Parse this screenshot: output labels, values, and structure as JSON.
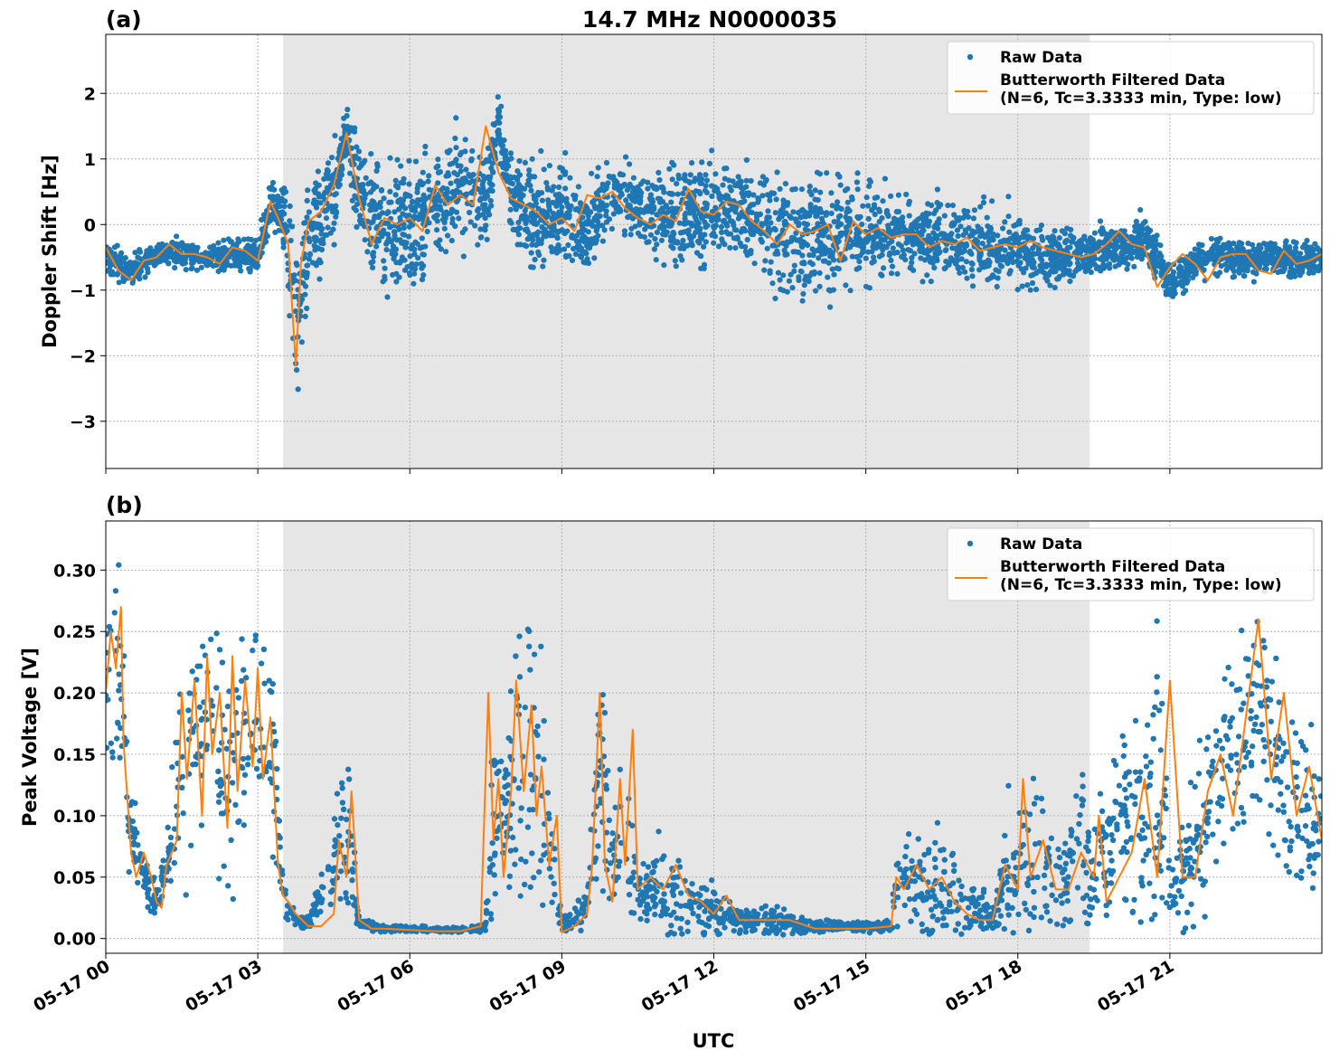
{
  "chart_data": [
    {
      "type": "scatter",
      "panel_label": "(a)",
      "title": "14.7 MHz N0000035",
      "xlabel": "",
      "ylabel": "Doppler Shift [Hz]",
      "x_range_hours_utc": [
        0,
        24
      ],
      "ylim": [
        -3.72,
        2.9
      ],
      "yticks": [
        -3,
        -2,
        -1,
        0,
        1,
        2
      ],
      "ytick_labels": [
        "−3",
        "−2",
        "−1",
        "0",
        "1",
        "2"
      ],
      "grid": true,
      "legend_position": "top-right",
      "shaded_interval_utc": [
        "05-17 03:30",
        "05-17 19:25"
      ],
      "series": [
        {
          "name": "Raw Data",
          "style": "points",
          "color": "#1f77b4",
          "x_hours": [
            0,
            0.5,
            1,
            1.5,
            2,
            2.5,
            3,
            3.25,
            3.5,
            3.75,
            4,
            4.25,
            4.5,
            4.75,
            5,
            5.5,
            6,
            6.5,
            7,
            7.5,
            7.75,
            8,
            8.5,
            9,
            9.5,
            10,
            10.5,
            11,
            11.5,
            12,
            12.5,
            13,
            13.5,
            14,
            14.5,
            15,
            15.5,
            16,
            16.5,
            17,
            17.5,
            18,
            18.5,
            19,
            19.5,
            20,
            20.5,
            21,
            21.5,
            22,
            22.5,
            23,
            23.5,
            24
          ],
          "center": [
            -0.45,
            -0.75,
            -0.45,
            -0.45,
            -0.5,
            -0.45,
            -0.5,
            0.3,
            0.1,
            -1.3,
            -0.5,
            0.1,
            0.5,
            1.35,
            0.4,
            0.0,
            -0.05,
            0.35,
            0.5,
            0.4,
            1.5,
            0.45,
            0.1,
            0.2,
            -0.05,
            0.5,
            0.3,
            0.1,
            0.15,
            0.15,
            0.25,
            0.0,
            -0.2,
            -0.15,
            -0.1,
            -0.1,
            -0.15,
            -0.2,
            -0.25,
            -0.3,
            -0.35,
            -0.35,
            -0.5,
            -0.5,
            -0.4,
            -0.35,
            -0.2,
            -0.9,
            -0.55,
            -0.45,
            -0.55,
            -0.45,
            -0.6,
            -0.5
          ],
          "spread": [
            0.25,
            0.25,
            0.2,
            0.2,
            0.2,
            0.25,
            0.3,
            0.45,
            0.6,
            1.1,
            0.9,
            0.8,
            0.7,
            0.45,
            0.9,
            0.9,
            0.9,
            0.85,
            0.85,
            0.75,
            0.45,
            0.6,
            0.7,
            0.85,
            0.65,
            0.55,
            0.55,
            0.7,
            0.75,
            0.75,
            0.65,
            0.85,
            0.95,
            0.95,
            0.9,
            0.85,
            0.6,
            0.55,
            0.6,
            0.6,
            0.55,
            0.55,
            0.5,
            0.4,
            0.35,
            0.35,
            0.4,
            0.3,
            0.3,
            0.3,
            0.3,
            0.3,
            0.3,
            0.3
          ]
        },
        {
          "name": "Butterworth Filtered Data\n(N=6, Tc=3.3333 min, Type: low)",
          "style": "line",
          "color": "#ff7f0e",
          "x_hours": [
            0,
            0.25,
            0.5,
            0.75,
            1,
            1.25,
            1.5,
            1.75,
            2,
            2.25,
            2.5,
            2.75,
            3,
            3.25,
            3.4,
            3.6,
            3.75,
            3.85,
            4,
            4.25,
            4.5,
            4.75,
            5,
            5.25,
            5.5,
            5.75,
            6,
            6.25,
            6.5,
            6.75,
            7,
            7.25,
            7.5,
            7.75,
            8,
            8.25,
            8.5,
            8.75,
            9,
            9.25,
            9.5,
            9.75,
            10,
            10.25,
            10.5,
            10.75,
            11,
            11.25,
            11.5,
            11.75,
            12,
            12.25,
            12.5,
            12.75,
            13,
            13.25,
            13.5,
            13.75,
            14,
            14.25,
            14.5,
            14.75,
            15,
            15.25,
            15.5,
            15.75,
            16,
            16.25,
            16.5,
            16.75,
            17,
            17.25,
            17.5,
            17.75,
            18,
            18.25,
            18.5,
            18.75,
            19,
            19.25,
            19.5,
            19.75,
            20,
            20.25,
            20.5,
            20.75,
            21,
            21.25,
            21.5,
            21.75,
            22,
            22.25,
            22.5,
            22.75,
            23,
            23.25,
            23.5,
            23.75,
            24
          ],
          "y": [
            -0.35,
            -0.7,
            -0.85,
            -0.55,
            -0.5,
            -0.3,
            -0.45,
            -0.45,
            -0.5,
            -0.6,
            -0.35,
            -0.4,
            -0.55,
            0.35,
            0.1,
            -0.3,
            -2.15,
            -0.6,
            0.05,
            0.2,
            0.6,
            1.4,
            0.4,
            -0.3,
            0.1,
            0.0,
            0.1,
            -0.1,
            0.6,
            0.3,
            0.45,
            0.3,
            1.5,
            0.8,
            0.4,
            0.3,
            0.2,
            0.0,
            0.1,
            -0.1,
            0.45,
            0.4,
            0.5,
            0.25,
            0.1,
            0.0,
            0.15,
            0.05,
            0.55,
            0.2,
            0.15,
            0.35,
            0.3,
            0.05,
            -0.1,
            -0.3,
            0.0,
            -0.15,
            -0.1,
            0.0,
            -0.55,
            0.05,
            -0.15,
            -0.05,
            -0.2,
            -0.15,
            -0.15,
            -0.35,
            -0.25,
            -0.3,
            -0.2,
            -0.4,
            -0.35,
            -0.3,
            -0.35,
            -0.25,
            -0.35,
            -0.4,
            -0.45,
            -0.5,
            -0.45,
            -0.3,
            -0.1,
            -0.3,
            -0.35,
            -0.95,
            -0.65,
            -0.45,
            -0.6,
            -0.85,
            -0.5,
            -0.45,
            -0.45,
            -0.7,
            -0.75,
            -0.4,
            -0.6,
            -0.55,
            -0.45
          ]
        }
      ]
    },
    {
      "type": "scatter",
      "panel_label": "(b)",
      "title": "",
      "xlabel": "UTC",
      "ylabel": "Peak Voltage [V]",
      "x_range_hours_utc": [
        0,
        24
      ],
      "ylim": [
        -0.012,
        0.34
      ],
      "yticks": [
        0.0,
        0.05,
        0.1,
        0.15,
        0.2,
        0.25,
        0.3
      ],
      "ytick_labels": [
        "0.00",
        "0.05",
        "0.10",
        "0.15",
        "0.20",
        "0.25",
        "0.30"
      ],
      "xticks_hours": [
        0,
        3,
        6,
        9,
        12,
        15,
        18,
        21
      ],
      "xtick_labels": [
        "05-17 00",
        "05-17 03",
        "05-17 06",
        "05-17 09",
        "05-17 12",
        "05-17 15",
        "05-17 18",
        "05-17 21"
      ],
      "grid": true,
      "legend_position": "top-right",
      "shaded_interval_utc": [
        "05-17 03:30",
        "05-17 19:25"
      ],
      "series": [
        {
          "name": "Raw Data",
          "style": "points",
          "color": "#1f77b4",
          "x_hours": [
            0,
            0.25,
            0.5,
            0.75,
            1,
            1.25,
            1.5,
            1.75,
            2,
            2.25,
            2.5,
            2.75,
            3,
            3.25,
            3.5,
            3.75,
            4,
            4.5,
            4.75,
            5,
            5.25,
            5.5,
            6,
            6.5,
            7,
            7.5,
            7.6,
            7.75,
            8,
            8.25,
            8.5,
            8.75,
            9,
            9.25,
            9.5,
            9.75,
            10,
            10.25,
            10.5,
            10.75,
            11,
            11.5,
            12,
            12.5,
            13,
            13.5,
            14,
            14.5,
            15,
            15.5,
            15.6,
            16,
            16.5,
            17,
            17.25,
            17.5,
            17.75,
            18,
            18.25,
            18.5,
            18.75,
            19,
            19.25,
            19.5,
            19.75,
            20,
            20.25,
            20.5,
            20.75,
            21,
            21.25,
            21.5,
            21.75,
            22,
            22.25,
            22.5,
            22.75,
            23,
            23.25,
            23.5,
            23.75,
            24
          ],
          "center": [
            0.2,
            0.24,
            0.08,
            0.05,
            0.03,
            0.07,
            0.14,
            0.17,
            0.18,
            0.16,
            0.15,
            0.17,
            0.16,
            0.17,
            0.04,
            0.015,
            0.012,
            0.06,
            0.09,
            0.012,
            0.01,
            0.008,
            0.008,
            0.007,
            0.007,
            0.01,
            0.08,
            0.1,
            0.12,
            0.15,
            0.14,
            0.08,
            0.01,
            0.015,
            0.03,
            0.15,
            0.05,
            0.1,
            0.04,
            0.04,
            0.04,
            0.03,
            0.02,
            0.015,
            0.015,
            0.012,
            0.01,
            0.01,
            0.01,
            0.01,
            0.05,
            0.05,
            0.04,
            0.03,
            0.02,
            0.02,
            0.05,
            0.05,
            0.06,
            0.06,
            0.05,
            0.05,
            0.07,
            0.05,
            0.06,
            0.1,
            0.1,
            0.11,
            0.13,
            0.06,
            0.06,
            0.08,
            0.1,
            0.13,
            0.15,
            0.18,
            0.2,
            0.16,
            0.12,
            0.11,
            0.1,
            0.1
          ],
          "spread": [
            0.1,
            0.08,
            0.04,
            0.025,
            0.015,
            0.05,
            0.1,
            0.1,
            0.1,
            0.1,
            0.1,
            0.1,
            0.1,
            0.1,
            0.025,
            0.006,
            0.005,
            0.04,
            0.08,
            0.005,
            0.004,
            0.003,
            0.003,
            0.002,
            0.002,
            0.004,
            0.08,
            0.07,
            0.08,
            0.12,
            0.1,
            0.06,
            0.005,
            0.01,
            0.025,
            0.11,
            0.04,
            0.1,
            0.03,
            0.03,
            0.05,
            0.025,
            0.02,
            0.01,
            0.015,
            0.01,
            0.006,
            0.004,
            0.005,
            0.005,
            0.04,
            0.04,
            0.04,
            0.03,
            0.015,
            0.015,
            0.05,
            0.06,
            0.1,
            0.05,
            0.05,
            0.05,
            0.08,
            0.05,
            0.05,
            0.09,
            0.1,
            0.1,
            0.12,
            0.04,
            0.05,
            0.06,
            0.07,
            0.1,
            0.1,
            0.1,
            0.1,
            0.1,
            0.08,
            0.07,
            0.07,
            0.07
          ]
        },
        {
          "name": "Butterworth Filtered Data\n(N=6, Tc=3.3333 min, Type: low)",
          "style": "line",
          "color": "#ff7f0e",
          "x_hours": [
            0,
            0.1,
            0.2,
            0.3,
            0.35,
            0.5,
            0.6,
            0.75,
            0.9,
            1.0,
            1.1,
            1.2,
            1.3,
            1.4,
            1.5,
            1.6,
            1.75,
            1.9,
            2.0,
            2.1,
            2.25,
            2.4,
            2.5,
            2.6,
            2.75,
            2.9,
            3.0,
            3.1,
            3.25,
            3.4,
            3.5,
            3.6,
            3.75,
            4.0,
            4.25,
            4.5,
            4.6,
            4.75,
            4.85,
            5.0,
            5.25,
            5.5,
            6.0,
            6.5,
            7.0,
            7.4,
            7.55,
            7.65,
            7.75,
            7.85,
            8.0,
            8.1,
            8.25,
            8.4,
            8.5,
            8.6,
            8.75,
            8.9,
            9.0,
            9.25,
            9.5,
            9.6,
            9.75,
            9.85,
            10.0,
            10.15,
            10.25,
            10.4,
            10.5,
            10.75,
            11.0,
            11.25,
            11.5,
            11.75,
            12.0,
            12.25,
            12.5,
            13.0,
            13.5,
            14.0,
            14.5,
            15.0,
            15.5,
            15.6,
            15.75,
            16.0,
            16.25,
            16.5,
            16.75,
            17.0,
            17.25,
            17.5,
            17.75,
            18.0,
            18.1,
            18.25,
            18.5,
            18.75,
            19.0,
            19.25,
            19.5,
            19.6,
            19.75,
            20.0,
            20.25,
            20.5,
            20.75,
            21.0,
            21.25,
            21.5,
            21.75,
            22.0,
            22.25,
            22.5,
            22.75,
            23.0,
            23.25,
            23.5,
            23.75,
            24.0
          ],
          "y": [
            0.2,
            0.25,
            0.22,
            0.27,
            0.16,
            0.07,
            0.05,
            0.07,
            0.05,
            0.03,
            0.025,
            0.06,
            0.07,
            0.08,
            0.2,
            0.13,
            0.21,
            0.1,
            0.23,
            0.15,
            0.2,
            0.09,
            0.23,
            0.12,
            0.21,
            0.14,
            0.22,
            0.13,
            0.18,
            0.06,
            0.035,
            0.03,
            0.02,
            0.01,
            0.01,
            0.02,
            0.08,
            0.05,
            0.12,
            0.015,
            0.008,
            0.008,
            0.007,
            0.006,
            0.006,
            0.01,
            0.2,
            0.08,
            0.13,
            0.05,
            0.12,
            0.21,
            0.12,
            0.19,
            0.1,
            0.14,
            0.06,
            0.1,
            0.005,
            0.01,
            0.02,
            0.06,
            0.2,
            0.06,
            0.03,
            0.13,
            0.06,
            0.17,
            0.04,
            0.05,
            0.04,
            0.06,
            0.035,
            0.03,
            0.02,
            0.035,
            0.015,
            0.015,
            0.015,
            0.008,
            0.008,
            0.008,
            0.01,
            0.05,
            0.04,
            0.06,
            0.04,
            0.05,
            0.03,
            0.02,
            0.015,
            0.015,
            0.06,
            0.04,
            0.13,
            0.05,
            0.08,
            0.04,
            0.04,
            0.07,
            0.05,
            0.1,
            0.03,
            0.05,
            0.07,
            0.13,
            0.05,
            0.21,
            0.05,
            0.05,
            0.12,
            0.15,
            0.1,
            0.18,
            0.26,
            0.13,
            0.2,
            0.1,
            0.14,
            0.08
          ]
        }
      ]
    }
  ]
}
